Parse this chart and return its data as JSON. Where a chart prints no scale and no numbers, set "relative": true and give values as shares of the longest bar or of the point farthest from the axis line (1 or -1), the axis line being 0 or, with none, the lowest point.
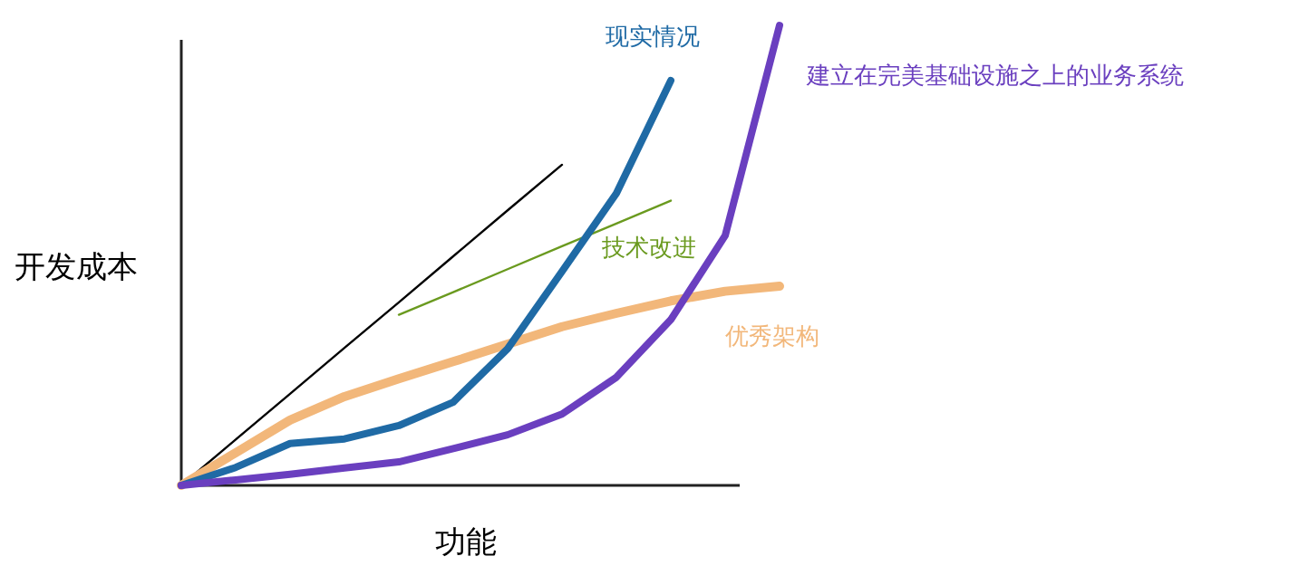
{
  "chart_data": {
    "type": "line",
    "relative": true,
    "xlabel": "功能",
    "ylabel": "开发成本",
    "marker": "none",
    "line_style": "solid",
    "categories": [
      null,
      null,
      null,
      null,
      null,
      null,
      null,
      null,
      null,
      null,
      null,
      null
    ],
    "series": [
      {
        "color": "#000000",
        "values": [
          0,
          0.0996,
          0.199,
          0.299,
          0.398,
          0.498,
          0.598,
          0.697,
          null,
          null,
          null,
          null
        ]
      },
      {
        "name": "技术改进",
        "color": "#6a9a1f",
        "values": [
          null,
          null,
          null,
          null,
          0.371,
          0.42,
          0.47,
          0.52,
          0.569,
          0.619,
          null,
          null
        ]
      },
      {
        "name": "优秀架构",
        "color": "#f2b77a",
        "values": [
          0,
          0.071,
          0.142,
          0.193,
          0.232,
          0.269,
          0.307,
          0.345,
          0.374,
          0.401,
          0.422,
          0.433
        ]
      },
      {
        "name": "现实情况",
        "color": "#1f6aa5",
        "values": [
          0,
          0.039,
          0.091,
          0.101,
          0.13,
          0.181,
          0.297,
          0.465,
          0.635,
          0.88,
          null,
          null
        ]
      },
      {
        "name": "建立在完美基础设施之上的业务系统",
        "color": "#6a3fbf",
        "values": [
          0,
          0.012,
          0.024,
          0.038,
          0.051,
          0.08,
          0.11,
          0.155,
          0.235,
          0.36,
          0.543,
          1
        ]
      }
    ]
  }
}
